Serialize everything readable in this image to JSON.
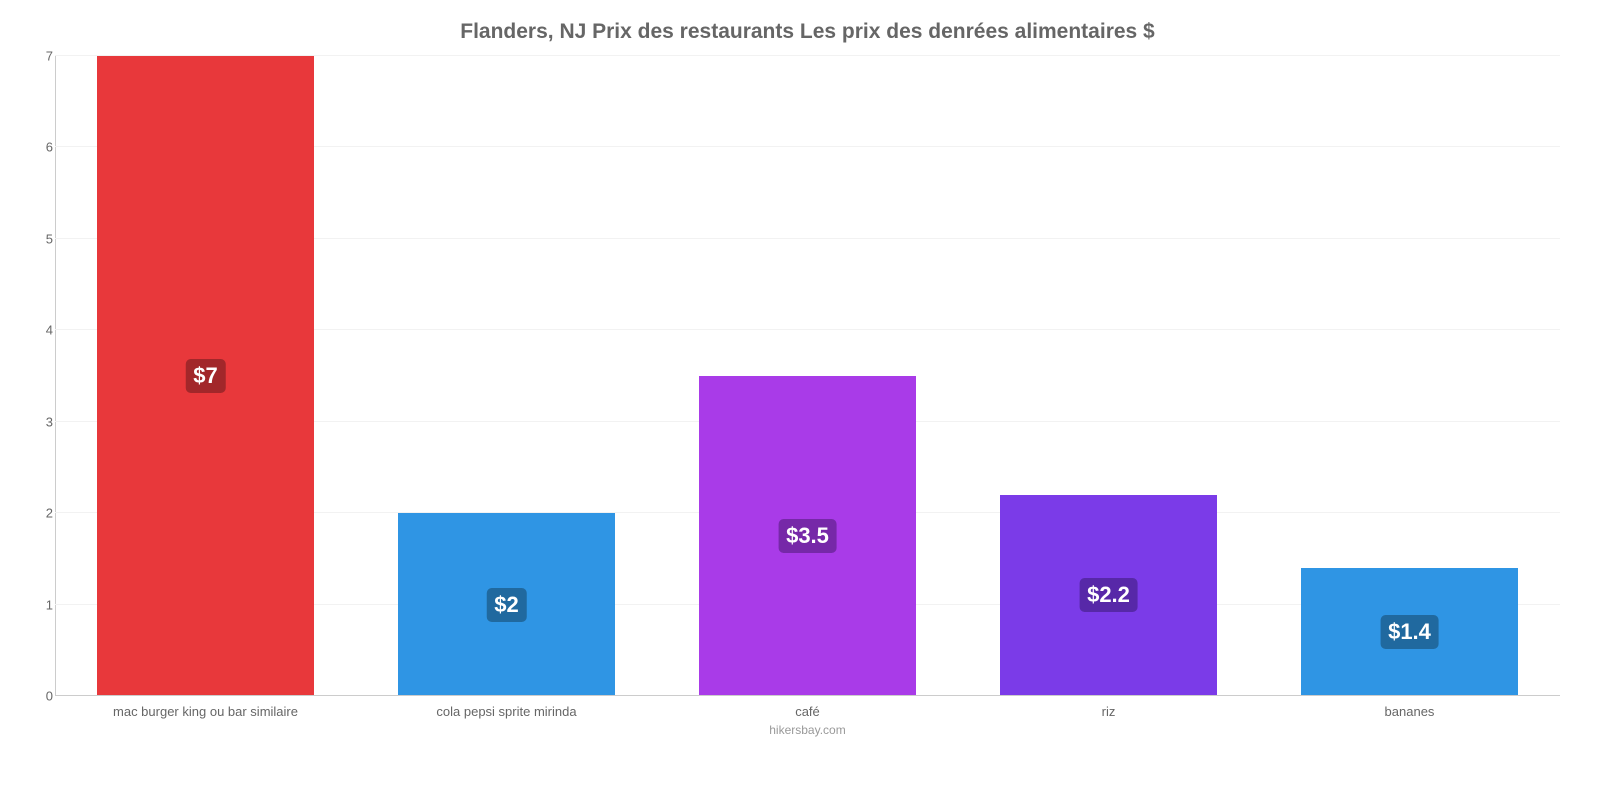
{
  "chart": {
    "type": "bar",
    "title": "Flanders, NJ Prix des restaurants Les prix des denrées alimentaires $",
    "title_color": "#666666",
    "title_fontsize": 21,
    "source": "hikersbay.com",
    "background_color": "#ffffff",
    "grid_color": "#f2f2f2",
    "axis_line_color": "#cccccc",
    "tick_color": "#666666",
    "tick_fontsize": 13,
    "ylim_min": 0,
    "ylim_max": 7,
    "yticks": [
      0,
      1,
      2,
      3,
      4,
      5,
      6,
      7
    ],
    "bar_width_pct": 72,
    "categories": [
      "mac burger king ou bar similaire",
      "cola pepsi sprite mirinda",
      "café",
      "riz",
      "bananes"
    ],
    "bars": [
      {
        "value": 7.0,
        "label": "$7",
        "color": "#e8383b",
        "label_bg": "#a2272a",
        "label_fontsize": 22
      },
      {
        "value": 2.0,
        "label": "$2",
        "color": "#2f95e4",
        "label_bg": "#20699f",
        "label_fontsize": 22
      },
      {
        "value": 3.5,
        "label": "$3.5",
        "color": "#a93be8",
        "label_bg": "#7628a8",
        "label_fontsize": 22
      },
      {
        "value": 2.2,
        "label": "$2.2",
        "color": "#7b3be8",
        "label_bg": "#5728a8",
        "label_fontsize": 22
      },
      {
        "value": 1.4,
        "label": "$1.4",
        "color": "#2f95e4",
        "label_bg": "#20699f",
        "label_fontsize": 22
      }
    ]
  }
}
